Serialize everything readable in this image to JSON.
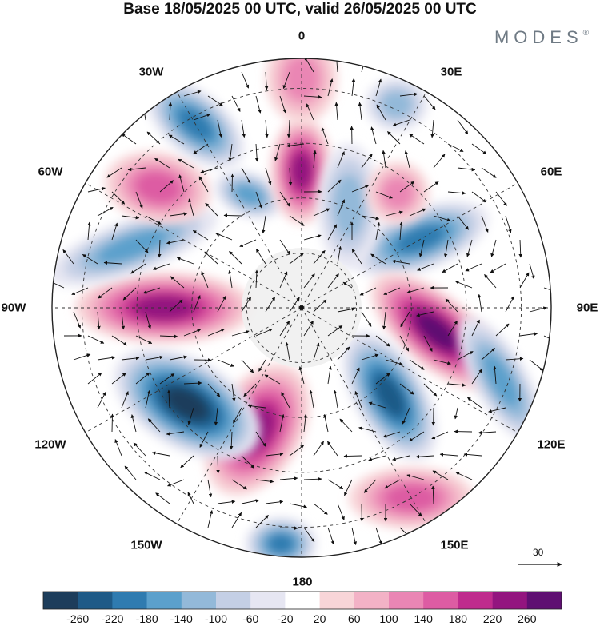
{
  "title": "Base 18/05/2025 00 UTC, valid 26/05/2025 00 UTC",
  "brand": "MODES",
  "brand_mark": "®",
  "longitude_labels": {
    "lon0": "0",
    "lon30e": "30E",
    "lon60e": "60E",
    "lon90e": "90E",
    "lon120e": "120E",
    "lon150e": "150E",
    "lon180": "180",
    "lon150w": "150W",
    "lon120w": "120W",
    "lon90w": "90W",
    "lon60w": "60W",
    "lon30w": "30W"
  },
  "reference_vector": {
    "label": "30"
  },
  "colorbar": {
    "levels": [
      "-260",
      "-220",
      "-180",
      "-140",
      "-100",
      "-60",
      "-20",
      "20",
      "60",
      "100",
      "140",
      "180",
      "220",
      "260"
    ],
    "colors": [
      "#1d3d5b",
      "#1f5a87",
      "#2f7bb0",
      "#5ba0cc",
      "#93b9d9",
      "#c4cfe5",
      "#e6e6f2",
      "#ffffff",
      "#f8d5d8",
      "#f3b2c6",
      "#ea86b4",
      "#dd5ca3",
      "#bf2b8d",
      "#93157f",
      "#5f0f72"
    ]
  },
  "colors": {
    "negative_dark": "#1f5a87",
    "positive_dark": "#93157f",
    "land_mask": "#efefef",
    "grid": "#333333"
  },
  "anomaly_centres": [
    {
      "lon": 60,
      "colat": 0.55,
      "value": -150,
      "rx": 0.16,
      "ry": 0.07,
      "rot": -20
    },
    {
      "lon": 100,
      "colat": 0.55,
      "value": 250,
      "rx": 0.18,
      "ry": 0.08,
      "rot": 40
    },
    {
      "lon": 135,
      "colat": 0.5,
      "value": -220,
      "rx": 0.16,
      "ry": 0.08,
      "rot": 60
    },
    {
      "lon": 150,
      "colat": 0.88,
      "value": 120,
      "rx": 0.14,
      "ry": 0.07,
      "rot": 0
    },
    {
      "lon": 110,
      "colat": 0.85,
      "value": -120,
      "rx": 0.16,
      "ry": 0.06,
      "rot": 60
    },
    {
      "lon": -160,
      "colat": 0.52,
      "value": 200,
      "rx": 0.16,
      "ry": 0.1,
      "rot": -60
    },
    {
      "lon": -130,
      "colat": 0.6,
      "value": -260,
      "rx": 0.18,
      "ry": 0.1,
      "rot": 30
    },
    {
      "lon": -175,
      "colat": 0.95,
      "value": -150,
      "rx": 0.08,
      "ry": 0.06,
      "rot": 0
    },
    {
      "lon": -90,
      "colat": 0.55,
      "value": 220,
      "rx": 0.2,
      "ry": 0.08,
      "rot": 0
    },
    {
      "lon": -70,
      "colat": 0.72,
      "value": -130,
      "rx": 0.2,
      "ry": 0.06,
      "rot": -20
    },
    {
      "lon": -50,
      "colat": 0.75,
      "value": 120,
      "rx": 0.12,
      "ry": 0.08,
      "rot": 10
    },
    {
      "lon": -30,
      "colat": 0.85,
      "value": -180,
      "rx": 0.13,
      "ry": 0.07,
      "rot": 40
    },
    {
      "lon": -25,
      "colat": 0.5,
      "value": -110,
      "rx": 0.08,
      "ry": 0.05,
      "rot": 20
    },
    {
      "lon": 0,
      "colat": 0.55,
      "value": 200,
      "rx": 0.07,
      "ry": 0.12,
      "rot": 0
    },
    {
      "lon": 0,
      "colat": 0.92,
      "value": 90,
      "rx": 0.08,
      "ry": 0.1,
      "rot": 0
    },
    {
      "lon": 25,
      "colat": 0.9,
      "value": -70,
      "rx": 0.07,
      "ry": 0.06,
      "rot": 0
    },
    {
      "lon": 25,
      "colat": 0.45,
      "value": -70,
      "rx": 0.07,
      "ry": 0.14,
      "rot": 0
    },
    {
      "lon": 40,
      "colat": 0.6,
      "value": 70,
      "rx": 0.07,
      "ry": 0.07,
      "rot": 0
    }
  ]
}
